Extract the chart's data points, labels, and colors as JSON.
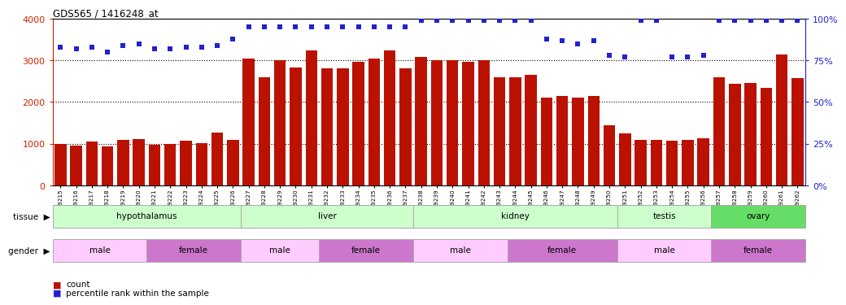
{
  "title": "GDS565 / 1416248_at",
  "samples": [
    "GSM19215",
    "GSM19216",
    "GSM19217",
    "GSM19218",
    "GSM19219",
    "GSM19220",
    "GSM19221",
    "GSM19222",
    "GSM19223",
    "GSM19224",
    "GSM19225",
    "GSM19226",
    "GSM19227",
    "GSM19228",
    "GSM19229",
    "GSM19230",
    "GSM19231",
    "GSM19232",
    "GSM19233",
    "GSM19234",
    "GSM19235",
    "GSM19236",
    "GSM19237",
    "GSM19238",
    "GSM19239",
    "GSM19240",
    "GSM19241",
    "GSM19242",
    "GSM19243",
    "GSM19244",
    "GSM19245",
    "GSM19246",
    "GSM19247",
    "GSM19248",
    "GSM19249",
    "GSM19250",
    "GSM19251",
    "GSM19252",
    "GSM19253",
    "GSM19254",
    "GSM19255",
    "GSM19256",
    "GSM19257",
    "GSM19258",
    "GSM19259",
    "GSM19260",
    "GSM19261",
    "GSM19262"
  ],
  "counts": [
    1000,
    950,
    1050,
    930,
    1080,
    1100,
    970,
    990,
    1060,
    1010,
    1260,
    1080,
    3050,
    2600,
    3000,
    2830,
    3250,
    2810,
    2810,
    2960,
    3040,
    3250,
    2810,
    3080,
    3000,
    3000,
    2960,
    3000,
    2600,
    2600,
    2650,
    2100,
    2150,
    2100,
    2150,
    1450,
    1250,
    1090,
    1090,
    1070,
    1080,
    1130,
    2600,
    2440,
    2460,
    2340,
    3150,
    2570
  ],
  "percentiles": [
    83,
    82,
    83,
    80,
    84,
    85,
    82,
    82,
    83,
    83,
    84,
    88,
    95,
    95,
    95,
    95,
    95,
    95,
    95,
    95,
    95,
    95,
    95,
    99,
    99,
    99,
    99,
    99,
    99,
    99,
    99,
    88,
    87,
    85,
    87,
    78,
    77,
    99,
    99,
    77,
    77,
    78,
    99,
    99,
    99,
    99,
    99,
    99
  ],
  "bar_color": "#bb1100",
  "dot_color": "#2222cc",
  "ylim_left": [
    0,
    4000
  ],
  "ylim_right": [
    0,
    100
  ],
  "yticks_left": [
    0,
    1000,
    2000,
    3000,
    4000
  ],
  "yticks_right": [
    0,
    25,
    50,
    75,
    100
  ],
  "grid_values": [
    1000,
    2000,
    3000
  ],
  "tissues": [
    {
      "label": "hypothalamus",
      "start": 0,
      "end": 12,
      "color": "#ccffcc"
    },
    {
      "label": "liver",
      "start": 12,
      "end": 23,
      "color": "#ccffcc"
    },
    {
      "label": "kidney",
      "start": 23,
      "end": 36,
      "color": "#ccffcc"
    },
    {
      "label": "testis",
      "start": 36,
      "end": 42,
      "color": "#ccffcc"
    },
    {
      "label": "ovary",
      "start": 42,
      "end": 48,
      "color": "#66dd66"
    }
  ],
  "genders": [
    {
      "label": "male",
      "start": 0,
      "end": 6,
      "color": "#ffccff"
    },
    {
      "label": "female",
      "start": 6,
      "end": 12,
      "color": "#cc77cc"
    },
    {
      "label": "male",
      "start": 12,
      "end": 17,
      "color": "#ffccff"
    },
    {
      "label": "female",
      "start": 17,
      "end": 23,
      "color": "#cc77cc"
    },
    {
      "label": "male",
      "start": 23,
      "end": 29,
      "color": "#ffccff"
    },
    {
      "label": "female",
      "start": 29,
      "end": 36,
      "color": "#cc77cc"
    },
    {
      "label": "male",
      "start": 36,
      "end": 42,
      "color": "#ffccff"
    },
    {
      "label": "female",
      "start": 42,
      "end": 48,
      "color": "#cc77cc"
    }
  ],
  "bg_color": "#ffffff",
  "axis_color_left": "#cc2200",
  "axis_color_right": "#2222cc"
}
